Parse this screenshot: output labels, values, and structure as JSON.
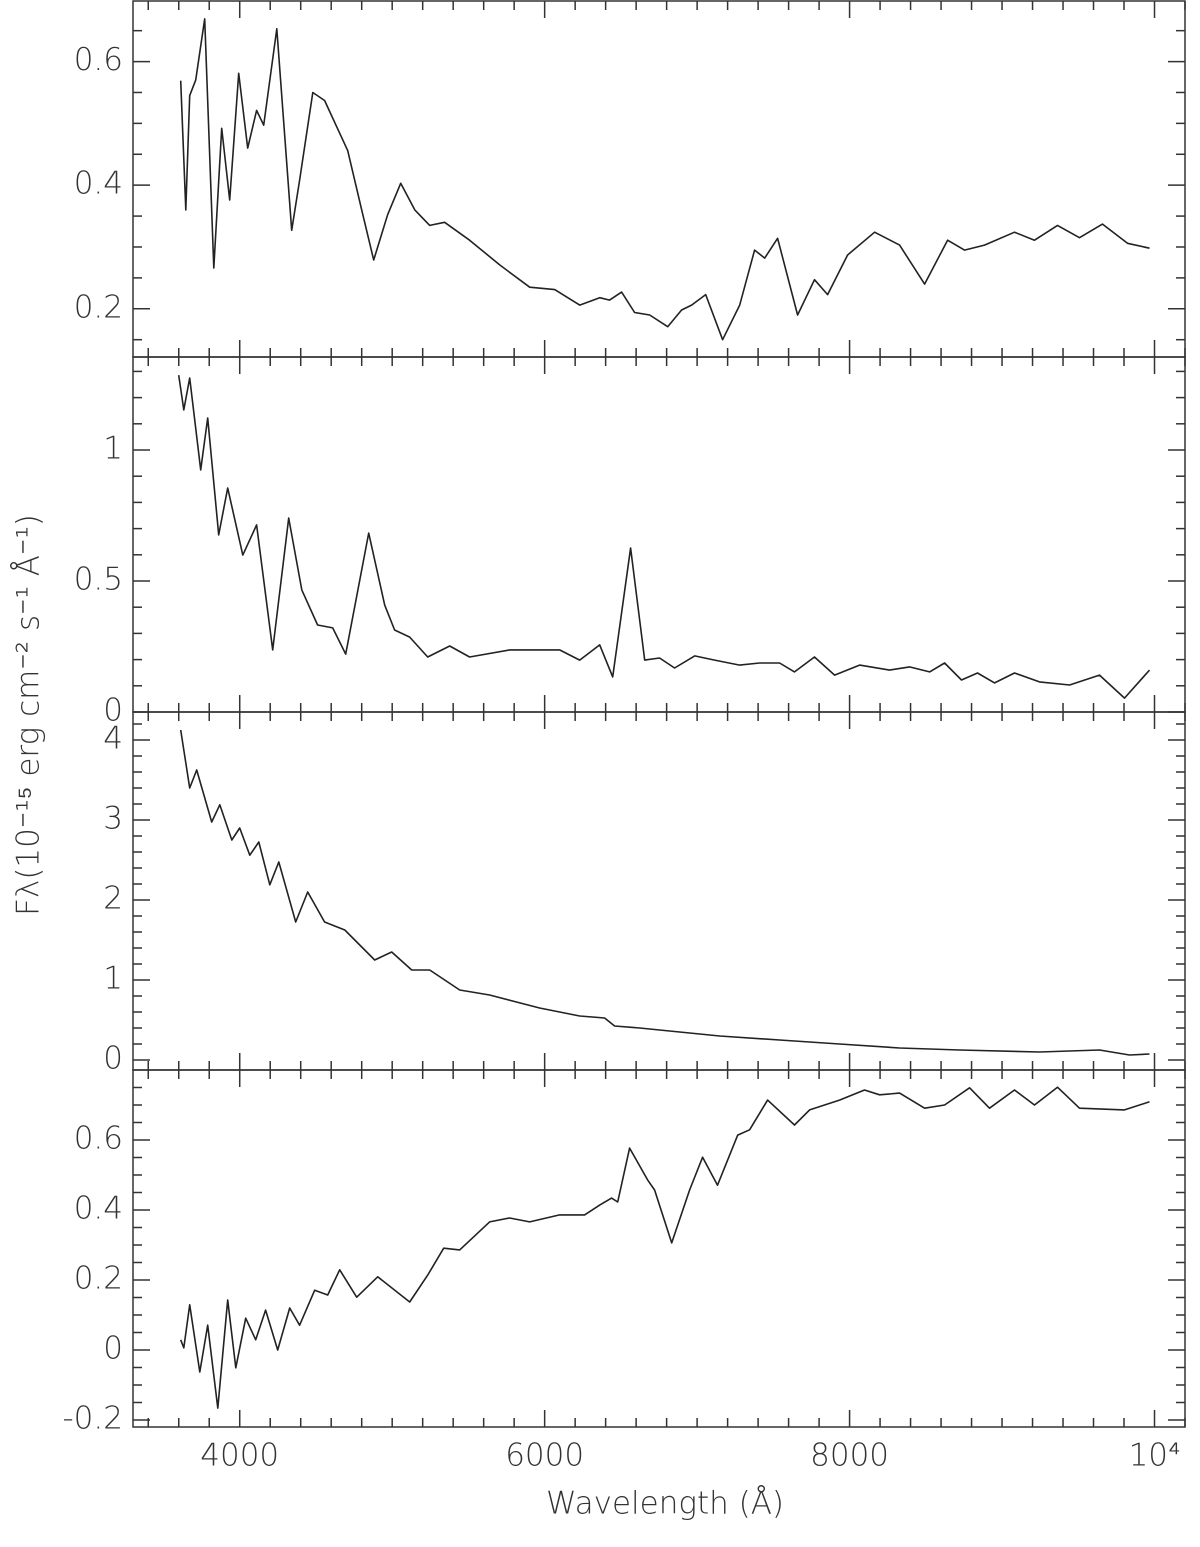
{
  "xlabel": "Wavelength (Å)",
  "ylabel": "Fλ(10⁻¹⁵ erg cm⁻² s⁻¹ Å⁻¹)",
  "xlim": [
    3300,
    10200
  ],
  "xticks": [
    4000,
    6000,
    8000,
    {
      "value": 10000,
      "label": "10⁴"
    }
  ],
  "xminorticks": [
    3400,
    3600,
    3800,
    4200,
    4400,
    4600,
    4800,
    5000,
    5200,
    5400,
    5600,
    5800,
    6200,
    6400,
    6600,
    6800,
    7000,
    7200,
    7400,
    7600,
    7800,
    8200,
    8400,
    8600,
    8800,
    9000,
    9200,
    9400,
    9600,
    9800,
    10200
  ],
  "chart_data": [
    {
      "type": "line",
      "color": "#222",
      "ylim": [
        0.122,
        0.698
      ],
      "yticks": [
        0.2,
        0.4,
        0.6
      ],
      "yminorticks": [
        0.15,
        0.25,
        0.3,
        0.35,
        0.45,
        0.5,
        0.55,
        0.65
      ],
      "x": [
        3613,
        3646,
        3672,
        3711,
        3770,
        3830,
        3882,
        3934,
        3993,
        4052,
        4111,
        4157,
        4243,
        4341,
        4393,
        4479,
        4557,
        4708,
        4800,
        4879,
        4970,
        5056,
        5148,
        5246,
        5344,
        5508,
        5705,
        5902,
        6066,
        6230,
        6361,
        6426,
        6505,
        6590,
        6689,
        6807,
        6898,
        6964,
        7056,
        7167,
        7279,
        7377,
        7443,
        7528,
        7659,
        7770,
        7856,
        7987,
        8164,
        8328,
        8492,
        8643,
        8754,
        8885,
        9082,
        9213,
        9364,
        9508,
        9659,
        9823,
        9967
      ],
      "values": [
        0.569,
        0.36,
        0.545,
        0.57,
        0.669,
        0.266,
        0.492,
        0.376,
        0.581,
        0.46,
        0.521,
        0.497,
        0.653,
        0.327,
        0.408,
        0.55,
        0.537,
        0.456,
        0.36,
        0.279,
        0.352,
        0.403,
        0.36,
        0.335,
        0.34,
        0.311,
        0.271,
        0.235,
        0.231,
        0.206,
        0.218,
        0.214,
        0.227,
        0.194,
        0.19,
        0.171,
        0.198,
        0.206,
        0.223,
        0.15,
        0.206,
        0.295,
        0.282,
        0.314,
        0.19,
        0.247,
        0.223,
        0.287,
        0.324,
        0.303,
        0.24,
        0.311,
        0.295,
        0.303,
        0.324,
        0.311,
        0.335,
        0.315,
        0.337,
        0.306,
        0.298
      ]
    },
    {
      "type": "line",
      "color": "#222",
      "ylim": [
        0,
        1.355
      ],
      "yticks": [
        0,
        0.5,
        1
      ],
      "yminorticks": [
        0.1,
        0.2,
        0.3,
        0.4,
        0.6,
        0.7,
        0.8,
        0.9,
        1.1,
        1.2,
        1.3
      ],
      "x": [
        3600,
        3633,
        3672,
        3744,
        3790,
        3862,
        3921,
        4020,
        4111,
        4216,
        4321,
        4407,
        4511,
        4610,
        4695,
        4846,
        4951,
        5016,
        5115,
        5233,
        5377,
        5508,
        5770,
        6098,
        6230,
        6361,
        6446,
        6564,
        6656,
        6754,
        6852,
        6984,
        7115,
        7279,
        7410,
        7541,
        7639,
        7770,
        7902,
        8066,
        8262,
        8393,
        8525,
        8623,
        8734,
        8839,
        8951,
        9082,
        9246,
        9443,
        9639,
        9803,
        9967
      ],
      "values": [
        1.286,
        1.153,
        1.275,
        0.924,
        1.122,
        0.676,
        0.855,
        0.599,
        0.714,
        0.237,
        0.74,
        0.466,
        0.332,
        0.321,
        0.221,
        0.683,
        0.408,
        0.313,
        0.286,
        0.21,
        0.252,
        0.21,
        0.237,
        0.237,
        0.198,
        0.256,
        0.134,
        0.626,
        0.198,
        0.206,
        0.168,
        0.214,
        0.198,
        0.179,
        0.187,
        0.187,
        0.153,
        0.21,
        0.141,
        0.179,
        0.16,
        0.172,
        0.153,
        0.187,
        0.122,
        0.149,
        0.111,
        0.149,
        0.115,
        0.103,
        0.141,
        0.053,
        0.16
      ]
    },
    {
      "type": "line",
      "color": "#222",
      "ylim": [
        -0.125,
        4.35
      ],
      "yticks": [
        0,
        1,
        2,
        3,
        4
      ],
      "yminorticks": [
        0.2,
        0.4,
        0.6,
        0.8,
        1.2,
        1.4,
        1.6,
        1.8,
        2.2,
        2.4,
        2.6,
        2.8,
        3.2,
        3.4,
        3.6,
        3.8,
        4.2
      ],
      "x": [
        3613,
        3672,
        3718,
        3816,
        3869,
        3948,
        4000,
        4066,
        4125,
        4197,
        4256,
        4367,
        4446,
        4557,
        4689,
        4885,
        4997,
        5128,
        5246,
        5443,
        5639,
        5967,
        6230,
        6393,
        6459,
        6623,
        6885,
        7148,
        7541,
        7934,
        8328,
        8721,
        9246,
        9639,
        9836,
        9967
      ],
      "values": [
        4.125,
        3.4,
        3.625,
        2.975,
        3.19,
        2.75,
        2.9,
        2.56,
        2.725,
        2.19,
        2.475,
        1.725,
        2.1,
        1.725,
        1.625,
        1.25,
        1.35,
        1.125,
        1.125,
        0.875,
        0.8125,
        0.65,
        0.55,
        0.525,
        0.425,
        0.4,
        0.35,
        0.3,
        0.25,
        0.2,
        0.15,
        0.125,
        0.1,
        0.125,
        0.0625,
        0.075
      ]
    },
    {
      "type": "line",
      "color": "#222",
      "ylim": [
        -0.22,
        0.8
      ],
      "yticks": [
        -0.2,
        0,
        0.2,
        0.4,
        0.6
      ],
      "yminorticks": [
        -0.15,
        -0.1,
        -0.05,
        0.05,
        0.1,
        0.15,
        0.25,
        0.3,
        0.35,
        0.45,
        0.5,
        0.55,
        0.65,
        0.7,
        0.75
      ],
      "x": [
        3613,
        3633,
        3672,
        3738,
        3790,
        3856,
        3921,
        3974,
        4039,
        4105,
        4170,
        4249,
        4328,
        4393,
        4492,
        4577,
        4656,
        4767,
        4905,
        5115,
        5233,
        5338,
        5443,
        5639,
        5770,
        5902,
        6098,
        6262,
        6361,
        6439,
        6479,
        6557,
        6675,
        6721,
        6833,
        6951,
        7036,
        7134,
        7266,
        7344,
        7462,
        7639,
        7738,
        7934,
        8098,
        8197,
        8328,
        8492,
        8623,
        8787,
        8918,
        9082,
        9213,
        9364,
        9508,
        9803,
        9967
      ],
      "values": [
        0.029,
        0.006,
        0.129,
        -0.063,
        0.071,
        -0.166,
        0.143,
        -0.051,
        0.091,
        0.029,
        0.114,
        0,
        0.12,
        0.071,
        0.171,
        0.157,
        0.229,
        0.151,
        0.209,
        0.137,
        0.214,
        0.291,
        0.286,
        0.366,
        0.377,
        0.366,
        0.386,
        0.386,
        0.414,
        0.434,
        0.423,
        0.577,
        0.486,
        0.457,
        0.306,
        0.457,
        0.551,
        0.471,
        0.614,
        0.629,
        0.714,
        0.643,
        0.686,
        0.714,
        0.743,
        0.729,
        0.734,
        0.691,
        0.7,
        0.749,
        0.691,
        0.743,
        0.7,
        0.751,
        0.691,
        0.686,
        0.709
      ]
    }
  ]
}
